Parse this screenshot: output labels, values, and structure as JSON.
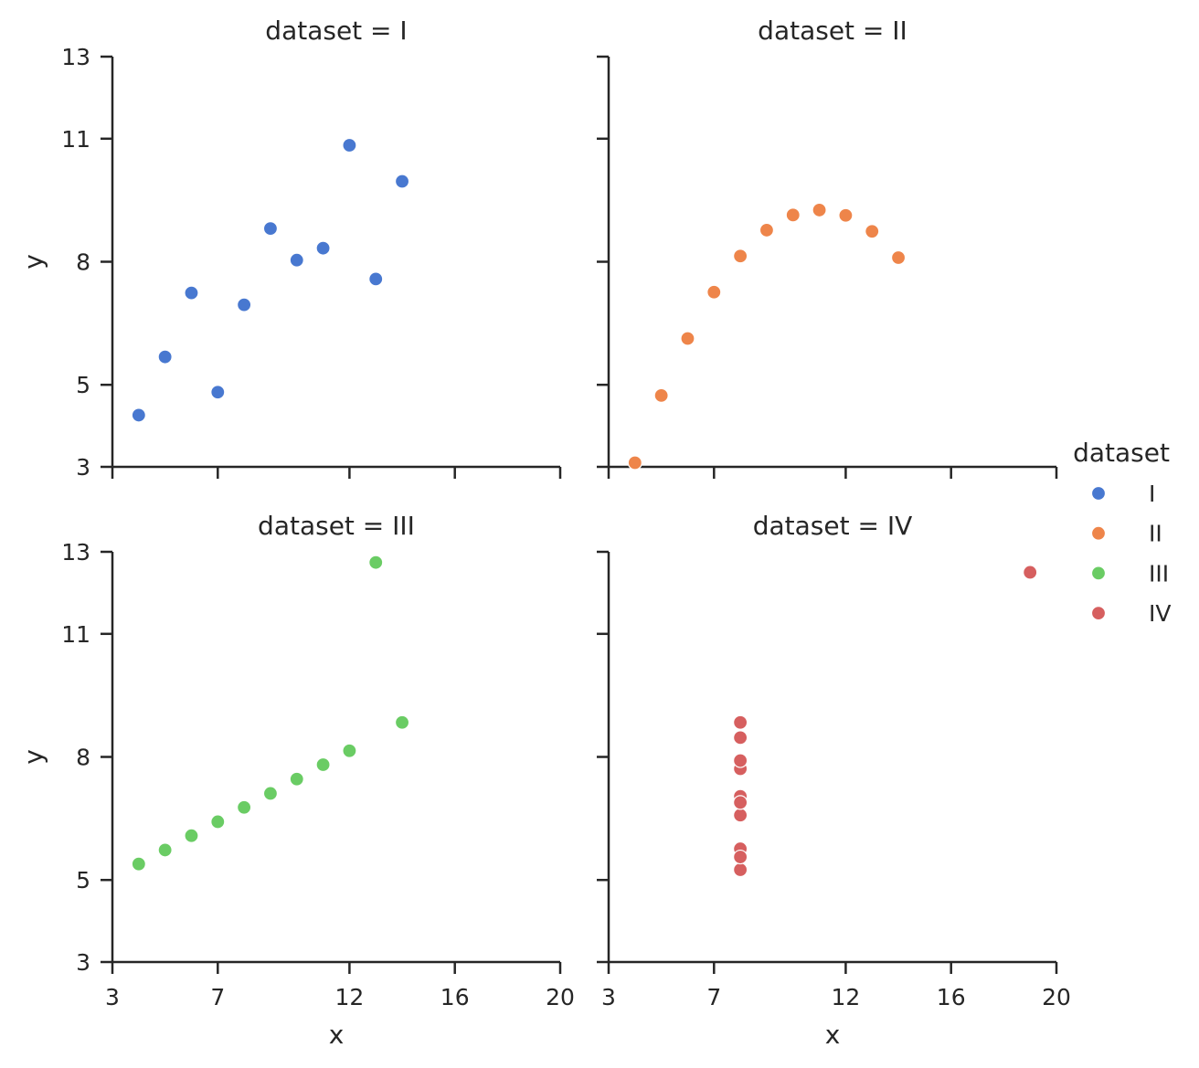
{
  "chart_data": {
    "type": "scatter",
    "layout": "facet-grid-2x2",
    "xlabel": "x",
    "ylabel": "y",
    "xlim": [
      3,
      20
    ],
    "ylim": [
      3,
      13
    ],
    "x_ticks": [
      3,
      7,
      12,
      16,
      20
    ],
    "y_ticks": [
      3,
      5,
      8,
      11,
      13
    ],
    "legend": {
      "title": "dataset",
      "placement": "right",
      "entries": [
        {
          "label": "I",
          "color": "#4878d0"
        },
        {
          "label": "II",
          "color": "#ee854a"
        },
        {
          "label": "III",
          "color": "#6acc64"
        },
        {
          "label": "IV",
          "color": "#d65f5f"
        }
      ]
    },
    "panels": [
      {
        "title": "dataset = I",
        "series": "I",
        "color": "#4878d0",
        "points": [
          [
            10,
            8.04
          ],
          [
            8,
            6.95
          ],
          [
            13,
            7.58
          ],
          [
            9,
            8.81
          ],
          [
            11,
            8.33
          ],
          [
            14,
            9.96
          ],
          [
            6,
            7.24
          ],
          [
            4,
            4.26
          ],
          [
            12,
            10.84
          ],
          [
            7,
            4.82
          ],
          [
            5,
            5.68
          ]
        ]
      },
      {
        "title": "dataset = II",
        "series": "II",
        "color": "#ee854a",
        "points": [
          [
            10,
            9.14
          ],
          [
            8,
            8.14
          ],
          [
            13,
            8.74
          ],
          [
            9,
            8.77
          ],
          [
            11,
            9.26
          ],
          [
            14,
            8.1
          ],
          [
            6,
            6.13
          ],
          [
            4,
            3.1
          ],
          [
            12,
            9.13
          ],
          [
            7,
            7.26
          ],
          [
            5,
            4.74
          ]
        ]
      },
      {
        "title": "dataset = III",
        "series": "III",
        "color": "#6acc64",
        "points": [
          [
            10,
            7.46
          ],
          [
            8,
            6.77
          ],
          [
            13,
            12.74
          ],
          [
            9,
            7.11
          ],
          [
            11,
            7.81
          ],
          [
            14,
            8.84
          ],
          [
            6,
            6.08
          ],
          [
            4,
            5.39
          ],
          [
            12,
            8.15
          ],
          [
            7,
            6.42
          ],
          [
            5,
            5.73
          ]
        ]
      },
      {
        "title": "dataset = IV",
        "series": "IV",
        "color": "#d65f5f",
        "points": [
          [
            8,
            6.58
          ],
          [
            8,
            5.76
          ],
          [
            8,
            7.71
          ],
          [
            8,
            8.84
          ],
          [
            8,
            8.47
          ],
          [
            8,
            7.04
          ],
          [
            8,
            5.25
          ],
          [
            19,
            12.5
          ],
          [
            8,
            5.56
          ],
          [
            8,
            7.91
          ],
          [
            8,
            6.89
          ]
        ]
      }
    ]
  }
}
